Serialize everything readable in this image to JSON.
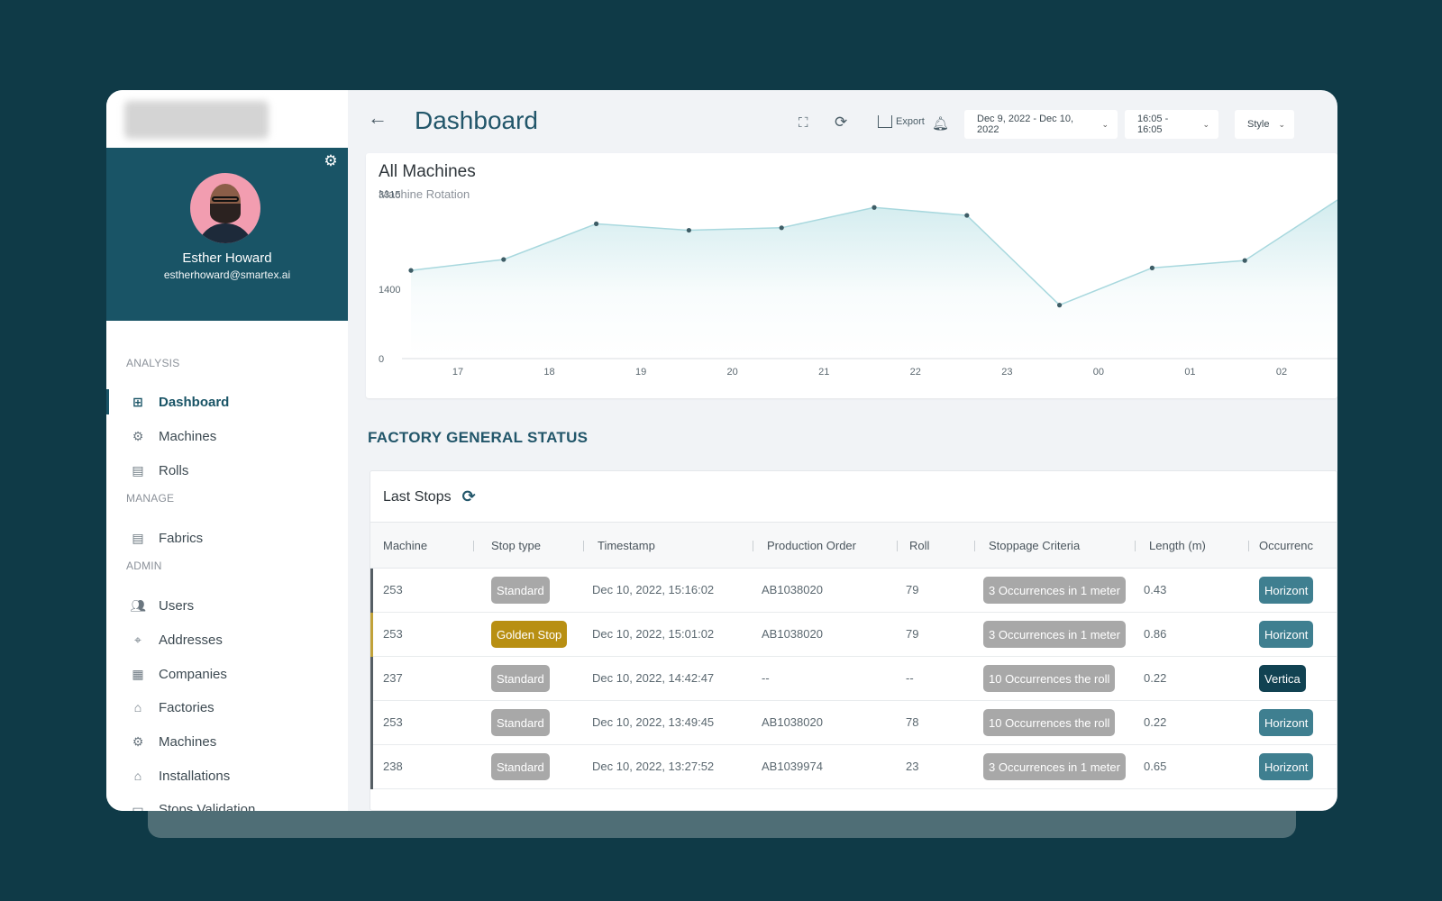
{
  "user": {
    "name": "Esther Howard",
    "email": "estherhoward@smartex.ai"
  },
  "sidebar": {
    "sections": [
      {
        "title": "ANALYSIS",
        "items": [
          {
            "label": "Dashboard",
            "icon": "grid-icon",
            "active": true
          },
          {
            "label": "Machines",
            "icon": "machine-icon"
          },
          {
            "label": "Rolls",
            "icon": "roll-icon"
          }
        ]
      },
      {
        "title": "MANAGE",
        "items": [
          {
            "label": "Fabrics",
            "icon": "fabric-icon"
          }
        ]
      },
      {
        "title": "ADMIN",
        "items": [
          {
            "label": "Users",
            "icon": "users-icon"
          },
          {
            "label": "Addresses",
            "icon": "address-icon"
          },
          {
            "label": "Companies",
            "icon": "companies-icon"
          },
          {
            "label": "Factories",
            "icon": "factory-icon"
          },
          {
            "label": "Machines",
            "icon": "machine-icon"
          },
          {
            "label": "Installations",
            "icon": "installation-icon"
          },
          {
            "label": "Stops Validation",
            "icon": "validation-icon"
          }
        ]
      }
    ]
  },
  "header": {
    "title": "Dashboard",
    "export_label": "Export",
    "date_range": "Dec 9, 2022 - Dec 10, 2022",
    "time_range": "16:05 - 16:05",
    "style_label": "Style"
  },
  "chart_data": {
    "type": "area",
    "title": "All Machines",
    "subtitle": "Machine Rotation",
    "y_ticks": [
      "3315",
      "1400",
      "0"
    ],
    "x_ticks": [
      "17",
      "18",
      "19",
      "20",
      "21",
      "22",
      "23",
      "00",
      "01",
      "02"
    ],
    "ylim": [
      0,
      3600
    ],
    "series": [
      {
        "values": [
          1780,
          2000,
          2720,
          2590,
          2640,
          3050,
          2890,
          1080,
          1830,
          1980,
          3200
        ]
      }
    ],
    "grid": false,
    "legend": "none",
    "color": "#7fc8d0"
  },
  "factory_status": {
    "title": "FACTORY GENERAL STATUS",
    "last_stops_title": "Last Stops",
    "columns": [
      "Machine",
      "Stop type",
      "Timestamp",
      "Production Order",
      "Roll",
      "Stoppage Criteria",
      "Length (m)",
      "Occurrenc"
    ],
    "rows": [
      {
        "machine": "253",
        "stop_type": "Standard",
        "stop_kind": "std",
        "timestamp": "Dec 10, 2022, 15:16:02",
        "order": "AB1038020",
        "roll": "79",
        "criteria": "3 Occurrences in 1 meter",
        "length": "0.43",
        "occurrence": "Horizont",
        "occ_kind": "hor"
      },
      {
        "machine": "253",
        "stop_type": "Golden Stop",
        "stop_kind": "gold",
        "timestamp": "Dec 10, 2022, 15:01:02",
        "order": "AB1038020",
        "roll": "79",
        "criteria": "3 Occurrences in 1 meter",
        "length": "0.86",
        "occurrence": "Horizont",
        "occ_kind": "hor"
      },
      {
        "machine": "237",
        "stop_type": "Standard",
        "stop_kind": "std",
        "timestamp": "Dec 10, 2022, 14:42:47",
        "order": "--",
        "roll": "--",
        "criteria": "10 Occurrences the roll",
        "length": "0.22",
        "occurrence": "Vertica",
        "occ_kind": "ver"
      },
      {
        "machine": "253",
        "stop_type": "Standard",
        "stop_kind": "std",
        "timestamp": "Dec 10, 2022, 13:49:45",
        "order": "AB1038020",
        "roll": "78",
        "criteria": "10 Occurrences the roll",
        "length": "0.22",
        "occurrence": "Horizont",
        "occ_kind": "hor"
      },
      {
        "machine": "238",
        "stop_type": "Standard",
        "stop_kind": "std",
        "timestamp": "Dec 10, 2022, 13:27:52",
        "order": "AB1039974",
        "roll": "23",
        "criteria": "3 Occurrences in 1 meter",
        "length": "0.65",
        "occurrence": "Horizont",
        "occ_kind": "hor"
      }
    ]
  }
}
